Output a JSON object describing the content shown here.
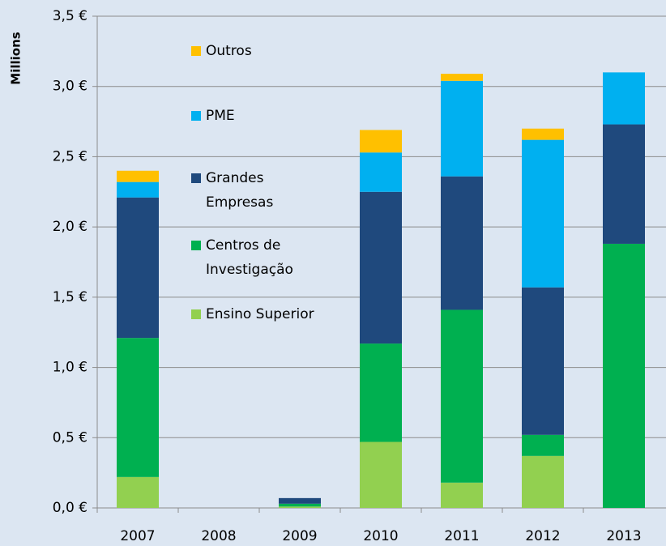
{
  "chart_data": {
    "type": "stacked-bar",
    "y_label": "Millions",
    "categories": [
      "2007",
      "2008",
      "2009",
      "2010",
      "2011",
      "2012",
      "2013"
    ],
    "series": [
      {
        "name": "Ensino Superior",
        "color": "#92d050",
        "values": [
          0.22,
          0,
          0.01,
          0.47,
          0.18,
          0.37,
          0
        ]
      },
      {
        "name": "Centros de Investigação",
        "color": "#00b050",
        "values": [
          0.99,
          0,
          0.02,
          0.7,
          1.23,
          0.15,
          1.88
        ]
      },
      {
        "name": "Grandes Empresas",
        "color": "#1f497d",
        "values": [
          1.0,
          0,
          0.04,
          1.08,
          0.95,
          1.05,
          0.85
        ]
      },
      {
        "name": "PME",
        "color": "#00b0f0",
        "values": [
          0.11,
          0,
          0,
          0.28,
          0.68,
          1.05,
          0.37
        ]
      },
      {
        "name": "Outros",
        "color": "#ffc000",
        "values": [
          0.08,
          0,
          0,
          0.16,
          0.05,
          0.08,
          0
        ]
      }
    ],
    "ylim": [
      0,
      3.5
    ],
    "yticks": [
      {
        "value": 0,
        "label": "0,0 €"
      },
      {
        "value": 0.5,
        "label": "0,5 €"
      },
      {
        "value": 1,
        "label": "1,0 €"
      },
      {
        "value": 1.5,
        "label": "1,5 €"
      },
      {
        "value": 2,
        "label": "2,0 €"
      },
      {
        "value": 2.5,
        "label": "2,5 €"
      },
      {
        "value": 3,
        "label": "3,0 €"
      },
      {
        "value": 3.5,
        "label": "3,5 €"
      }
    ],
    "grid": true
  }
}
